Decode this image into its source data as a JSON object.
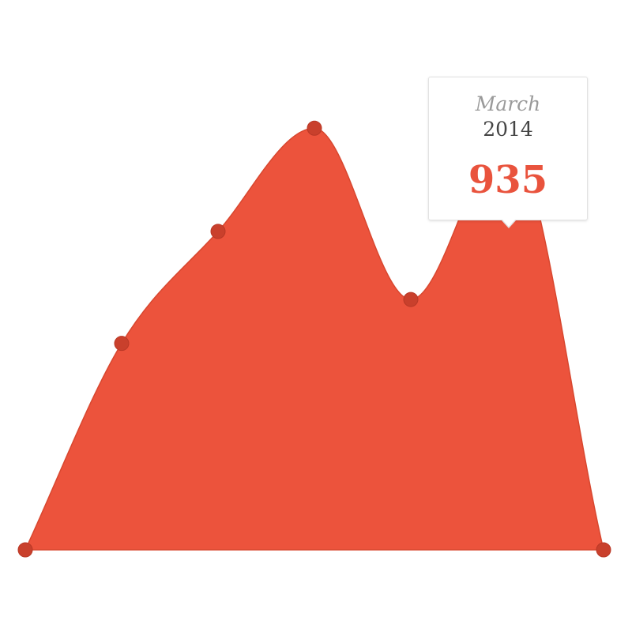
{
  "colors": {
    "area_fill": "#ec533c",
    "point_fill": "#c9402c",
    "highlight_stroke": "#ffffff",
    "value_text": "#e9533d"
  },
  "tooltip": {
    "month": "March",
    "year": "2014",
    "value": "935"
  },
  "chart_data": {
    "type": "area",
    "x": [
      0,
      1,
      2,
      3,
      4,
      5,
      6
    ],
    "values": [
      0,
      470,
      725,
      960,
      570,
      935,
      0
    ],
    "ylim": [
      0,
      1000
    ],
    "grid": false,
    "legend": "none",
    "highlighted_index": 5
  }
}
